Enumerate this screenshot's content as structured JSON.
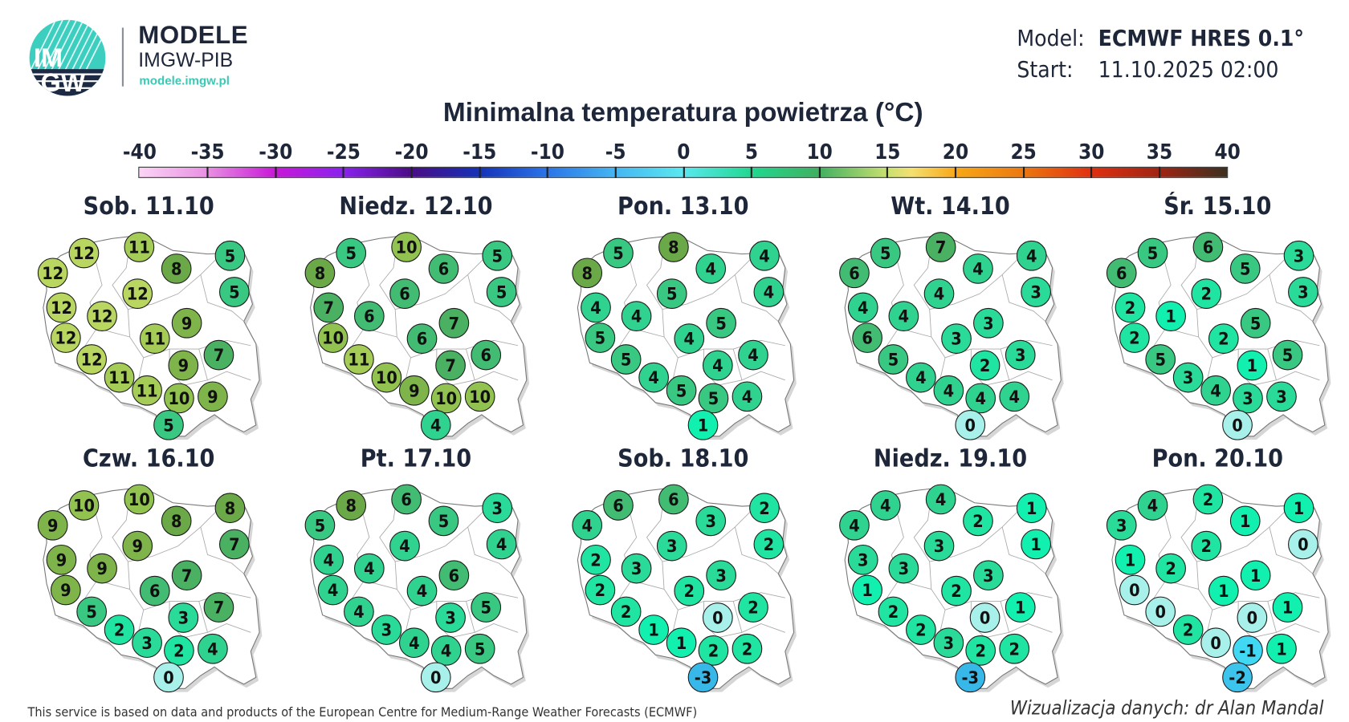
{
  "header": {
    "logo_text": "IMGW",
    "brand_title": "MODELE",
    "brand_subtitle": "IMGW-PIB",
    "brand_url": "modele.imgw.pl",
    "model_label": "Model:",
    "model_value": "ECMWF HRES 0.1°",
    "start_label": "Start:",
    "start_value": "11.10.2025 02:00"
  },
  "title": "Minimalna temperatura powietrza (°C)",
  "colorbar": {
    "ticks": [
      "-40",
      "-35",
      "-30",
      "-25",
      "-20",
      "-15",
      "-10",
      "-5",
      "0",
      "5",
      "10",
      "15",
      "20",
      "25",
      "30",
      "35",
      "40"
    ],
    "range": [
      -40,
      40
    ]
  },
  "value_colors": {
    "-3": "#38b8e8",
    "-2": "#3cc4ec",
    "-1": "#40d8f2",
    "0": "#a8f0ea",
    "1": "#12f0b0",
    "2": "#20e4a2",
    "3": "#2ada98",
    "4": "#30d290",
    "5": "#38c882",
    "6": "#42bc72",
    "7": "#4ab062",
    "8": "#6aa848",
    "9": "#7eb44a",
    "10": "#92c250",
    "11": "#a6cc58",
    "12": "#b8d660"
  },
  "days": [
    {
      "label": "Sob. 11.10",
      "values": [
        12,
        12,
        11,
        8,
        5,
        5,
        12,
        12,
        12,
        9,
        12,
        11,
        12,
        9,
        7,
        11,
        11,
        10,
        9,
        5
      ]
    },
    {
      "label": "Niedz. 12.10",
      "values": [
        8,
        5,
        10,
        6,
        5,
        5,
        7,
        6,
        6,
        7,
        10,
        6,
        11,
        7,
        6,
        10,
        9,
        10,
        10,
        4
      ]
    },
    {
      "label": "Pon. 13.10",
      "values": [
        8,
        5,
        8,
        4,
        4,
        4,
        4,
        4,
        5,
        5,
        5,
        4,
        5,
        4,
        4,
        4,
        5,
        5,
        4,
        1
      ]
    },
    {
      "label": "Wt. 14.10",
      "values": [
        6,
        5,
        7,
        4,
        4,
        3,
        4,
        4,
        4,
        3,
        6,
        3,
        5,
        2,
        3,
        4,
        4,
        4,
        4,
        0
      ]
    },
    {
      "label": "Śr. 15.10",
      "values": [
        6,
        5,
        6,
        5,
        3,
        3,
        2,
        1,
        2,
        5,
        2,
        2,
        5,
        1,
        5,
        3,
        4,
        3,
        3,
        0
      ]
    },
    {
      "label": "Czw. 16.10",
      "values": [
        9,
        10,
        10,
        8,
        8,
        7,
        9,
        9,
        9,
        7,
        9,
        6,
        5,
        3,
        7,
        2,
        3,
        2,
        4,
        0
      ]
    },
    {
      "label": "Pt. 17.10",
      "values": [
        5,
        8,
        6,
        5,
        3,
        4,
        4,
        4,
        4,
        6,
        4,
        4,
        4,
        3,
        5,
        3,
        4,
        4,
        5,
        0
      ]
    },
    {
      "label": "Sob. 18.10",
      "values": [
        4,
        6,
        6,
        3,
        2,
        2,
        2,
        3,
        3,
        3,
        2,
        2,
        2,
        0,
        2,
        1,
        1,
        2,
        2,
        -3
      ]
    },
    {
      "label": "Niedz. 19.10",
      "values": [
        4,
        4,
        4,
        2,
        1,
        1,
        3,
        3,
        3,
        3,
        1,
        2,
        2,
        0,
        1,
        2,
        3,
        2,
        2,
        -3
      ]
    },
    {
      "label": "Pon. 20.10",
      "values": [
        3,
        4,
        2,
        1,
        1,
        0,
        1,
        2,
        2,
        1,
        0,
        1,
        0,
        0,
        1,
        2,
        0,
        -1,
        1,
        -2
      ]
    }
  ],
  "footer": {
    "credit": "This service is based on data and products of the European Centre for Medium-Range Weather Forecasts (ECMWF)",
    "author": "Wizualizacja danych: dr Alan Mandal"
  }
}
